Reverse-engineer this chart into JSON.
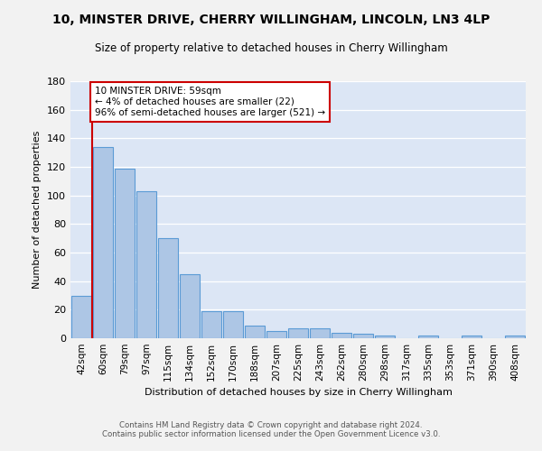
{
  "title_line1": "10, MINSTER DRIVE, CHERRY WILLINGHAM, LINCOLN, LN3 4LP",
  "title_line2": "Size of property relative to detached houses in Cherry Willingham",
  "xlabel": "Distribution of detached houses by size in Cherry Willingham",
  "ylabel": "Number of detached properties",
  "bar_labels": [
    "42sqm",
    "60sqm",
    "79sqm",
    "97sqm",
    "115sqm",
    "134sqm",
    "152sqm",
    "170sqm",
    "188sqm",
    "207sqm",
    "225sqm",
    "243sqm",
    "262sqm",
    "280sqm",
    "298sqm",
    "317sqm",
    "335sqm",
    "353sqm",
    "371sqm",
    "390sqm",
    "408sqm"
  ],
  "bar_values": [
    30,
    134,
    119,
    103,
    70,
    45,
    19,
    19,
    9,
    5,
    7,
    7,
    4,
    3,
    2,
    0,
    2,
    0,
    2,
    0,
    2
  ],
  "bar_color": "#adc6e5",
  "bar_edge_color": "#5b9bd5",
  "background_color": "#dce6f5",
  "grid_color": "#ffffff",
  "annotation_text_line1": "10 MINSTER DRIVE: 59sqm",
  "annotation_text_line2": "← 4% of detached houses are smaller (22)",
  "annotation_text_line3": "96% of semi-detached houses are larger (521) →",
  "annotation_box_color": "#ffffff",
  "annotation_box_edge": "#cc0000",
  "vline_color": "#cc0000",
  "ylim": [
    0,
    180
  ],
  "yticks": [
    0,
    20,
    40,
    60,
    80,
    100,
    120,
    140,
    160,
    180
  ],
  "footer_line1": "Contains HM Land Registry data © Crown copyright and database right 2024.",
  "footer_line2": "Contains public sector information licensed under the Open Government Licence v3.0.",
  "fig_bg": "#f2f2f2"
}
